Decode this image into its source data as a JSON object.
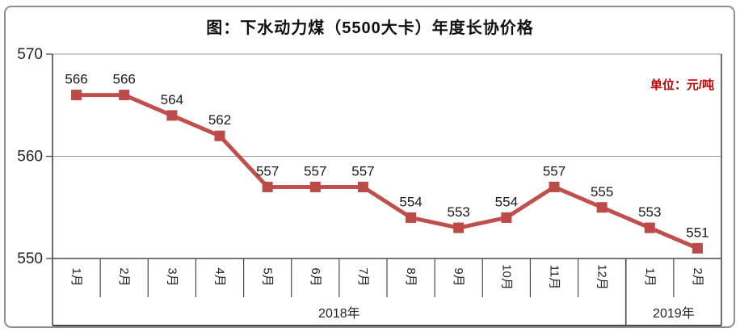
{
  "header": {
    "title": "图：下水动力煤（5500大卡）年度长协价格",
    "unit_label": "单位：元/吨"
  },
  "chart_data": {
    "type": "line",
    "title": "图：下水动力煤（5500大卡）年度长协价格",
    "unit_label": "单位：元/吨",
    "categories": [
      "1月",
      "2月",
      "3月",
      "4月",
      "5月",
      "6月",
      "7月",
      "8月",
      "9月",
      "10月",
      "11月",
      "12月",
      "1月",
      "2月"
    ],
    "values": [
      566,
      566,
      564,
      562,
      557,
      557,
      557,
      554,
      553,
      554,
      557,
      555,
      553,
      551
    ],
    "year_groups": [
      {
        "label": "2018年",
        "months": 12
      },
      {
        "label": "2019年",
        "months": 2
      }
    ],
    "ylim": [
      550,
      570
    ],
    "yticks": [
      550,
      560,
      570
    ],
    "xlabel": "",
    "ylabel": "",
    "grid": true,
    "legend": "none",
    "marker": "square",
    "data_labels": true
  },
  "colors": {
    "series_line": "#c0504d",
    "marker_fill": "#bb4a48",
    "data_label": "#1a1a1a",
    "axis": "#4a4a4a",
    "grid": "#9a9a9a",
    "tick_label": "#222222",
    "title_text": "#111111",
    "unit_text": "#c00000",
    "frame_border": "#8f8f8f"
  }
}
